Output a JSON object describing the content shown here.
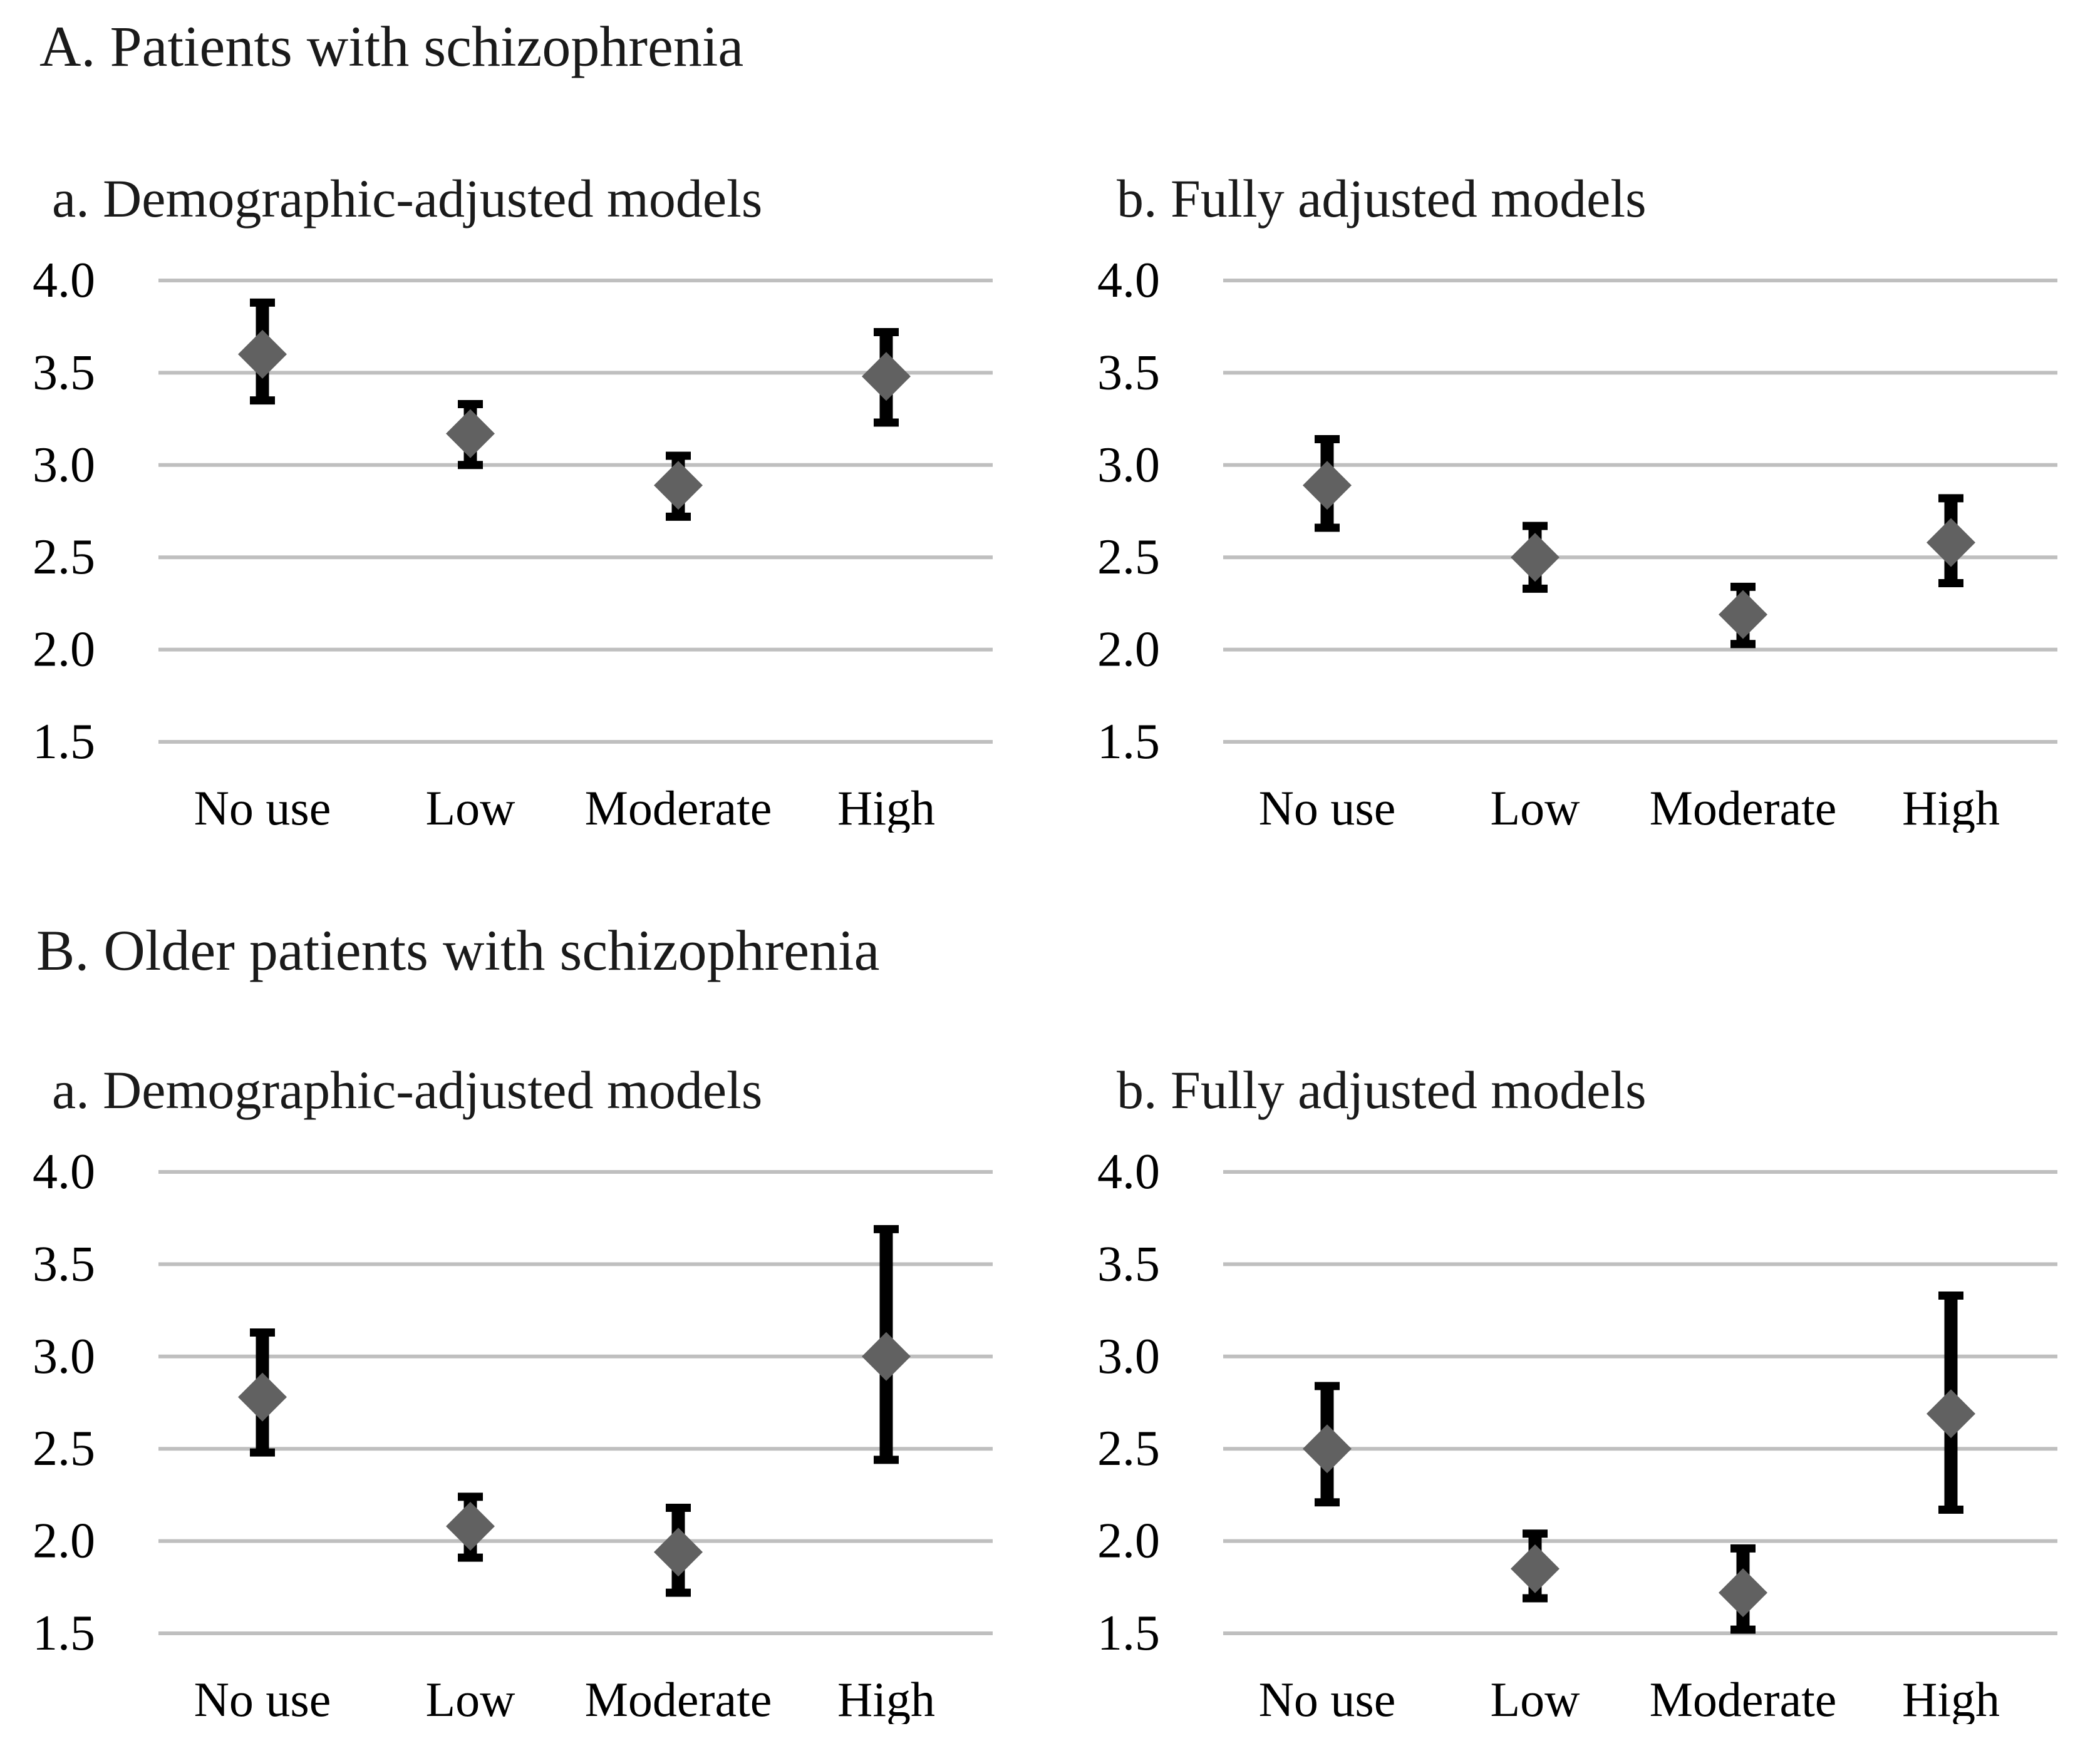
{
  "figure": {
    "sections": [
      {
        "id": "A",
        "label": "A. Patients with schizophrenia"
      },
      {
        "id": "B",
        "label": "B. Older patients with schizophrenia"
      }
    ]
  },
  "colors": {
    "marker": "#616161",
    "error_bar": "#000000",
    "gridline": "#bfbfbf",
    "text": "#000000",
    "background": "#ffffff"
  },
  "chart_data": [
    {
      "type": "scatter",
      "panel": "A",
      "title": "a. Demographic-adjusted models",
      "categories": [
        "No use",
        "Low",
        "Moderate",
        "High"
      ],
      "xlabel": "",
      "ylabel": "",
      "ylim": [
        1.5,
        4.0
      ],
      "y_tick_labels": [
        "4.0",
        "3.5",
        "3.0",
        "2.5",
        "2.0",
        "1.5"
      ],
      "grid": true,
      "legend": false,
      "marker": "diamond",
      "series": [
        {
          "name": "estimate",
          "values": [
            3.6,
            3.17,
            2.89,
            3.48
          ],
          "ci_low": [
            3.35,
            3.0,
            2.72,
            3.23
          ],
          "ci_high": [
            3.88,
            3.33,
            3.05,
            3.72
          ]
        }
      ]
    },
    {
      "type": "scatter",
      "panel": "A",
      "title": "b. Fully adjusted models",
      "categories": [
        "No use",
        "Low",
        "Moderate",
        "High"
      ],
      "xlabel": "",
      "ylabel": "",
      "ylim": [
        1.5,
        4.0
      ],
      "y_tick_labels": [
        "4.0",
        "3.5",
        "3.0",
        "2.5",
        "2.0",
        "1.5"
      ],
      "grid": true,
      "legend": false,
      "marker": "diamond",
      "series": [
        {
          "name": "estimate",
          "values": [
            2.89,
            2.5,
            2.19,
            2.58
          ],
          "ci_low": [
            2.66,
            2.33,
            2.03,
            2.36
          ],
          "ci_high": [
            3.14,
            2.67,
            2.34,
            2.82
          ]
        }
      ]
    },
    {
      "type": "scatter",
      "panel": "B",
      "title": "a. Demographic-adjusted models",
      "categories": [
        "No use",
        "Low",
        "Moderate",
        "High"
      ],
      "xlabel": "",
      "ylabel": "",
      "ylim": [
        1.5,
        4.0
      ],
      "y_tick_labels": [
        "4.0",
        "3.5",
        "3.0",
        "2.5",
        "2.0",
        "1.5"
      ],
      "grid": true,
      "legend": false,
      "marker": "diamond",
      "series": [
        {
          "name": "estimate",
          "values": [
            2.78,
            2.08,
            1.94,
            3.0
          ],
          "ci_low": [
            2.48,
            1.91,
            1.72,
            2.44
          ],
          "ci_high": [
            3.13,
            2.24,
            2.18,
            3.69
          ]
        }
      ]
    },
    {
      "type": "scatter",
      "panel": "B",
      "title": "b. Fully adjusted models",
      "categories": [
        "No use",
        "Low",
        "Moderate",
        "High"
      ],
      "xlabel": "",
      "ylabel": "",
      "ylim": [
        1.5,
        4.0
      ],
      "y_tick_labels": [
        "4.0",
        "3.5",
        "3.0",
        "2.5",
        "2.0",
        "1.5"
      ],
      "grid": true,
      "legend": false,
      "marker": "diamond",
      "series": [
        {
          "name": "estimate",
          "values": [
            2.5,
            1.85,
            1.72,
            2.69
          ],
          "ci_low": [
            2.21,
            1.69,
            1.52,
            2.17
          ],
          "ci_high": [
            2.84,
            2.04,
            1.96,
            3.33
          ]
        }
      ]
    }
  ]
}
